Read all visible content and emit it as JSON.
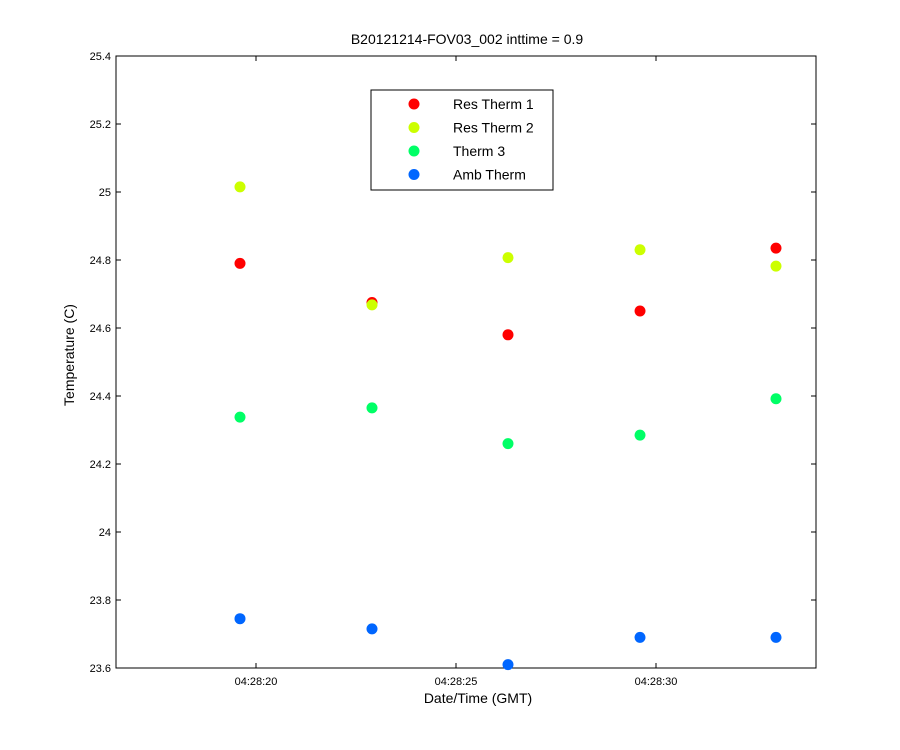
{
  "chart_data": {
    "type": "scatter",
    "title": "B20121214-FOV03_002 inttime = 0.9",
    "xlabel": "Date/Time (GMT)",
    "ylabel": "Temperature (C)",
    "xlim_seconds": [
      16.5,
      34.0
    ],
    "ylim": [
      23.6,
      25.4
    ],
    "yticks": [
      23.6,
      23.8,
      24,
      24.2,
      24.4,
      24.6,
      24.8,
      25,
      25.2,
      25.4
    ],
    "ytick_labels": [
      "23.6",
      "23.8",
      "24",
      "24.2",
      "24.4",
      "24.6",
      "24.8",
      "25",
      "25.2",
      "25.4"
    ],
    "xticks_seconds": [
      20,
      25,
      30
    ],
    "xtick_labels": [
      "04:28:20",
      "04:28:25",
      "04:28:30"
    ],
    "x_seconds": [
      19.6,
      22.9,
      26.3,
      29.6,
      33.0
    ],
    "x_times": [
      "04:28:19.6",
      "04:28:22.9",
      "04:28:26.3",
      "04:28:29.6",
      "04:28:33.0"
    ],
    "grid": false,
    "legend_position": "top-center",
    "series": [
      {
        "name": "Res Therm 1",
        "color": "#ff0000",
        "values": [
          24.79,
          24.675,
          24.58,
          24.65,
          24.835
        ]
      },
      {
        "name": "Res Therm 2",
        "color": "#ccff00",
        "values": [
          25.015,
          24.668,
          24.807,
          24.83,
          24.782
        ]
      },
      {
        "name": "Therm 3",
        "color": "#00ff66",
        "values": [
          24.338,
          24.365,
          24.26,
          24.285,
          24.392
        ]
      },
      {
        "name": "Amb Therm",
        "color": "#0066ff",
        "values": [
          23.745,
          23.715,
          23.61,
          23.69,
          23.69
        ]
      }
    ]
  }
}
